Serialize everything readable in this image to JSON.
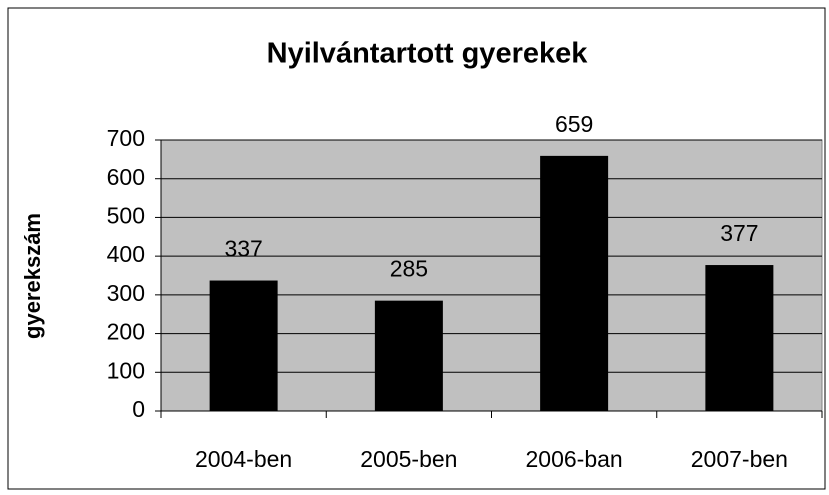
{
  "chart_data": {
    "type": "bar",
    "title": "Nyilvántartott gyerekek",
    "y_label": "gyerekszám",
    "categories": [
      "2004-ben",
      "2005-ben",
      "2006-ban",
      "2007-ben"
    ],
    "values": [
      337,
      285,
      659,
      377
    ],
    "color": "#000000",
    "plot_background": "#c0c0c0",
    "ylim": [
      0,
      700
    ],
    "yticks": [
      0,
      100,
      200,
      300,
      400,
      500,
      600,
      700
    ],
    "grid": true,
    "data_labels": true
  }
}
